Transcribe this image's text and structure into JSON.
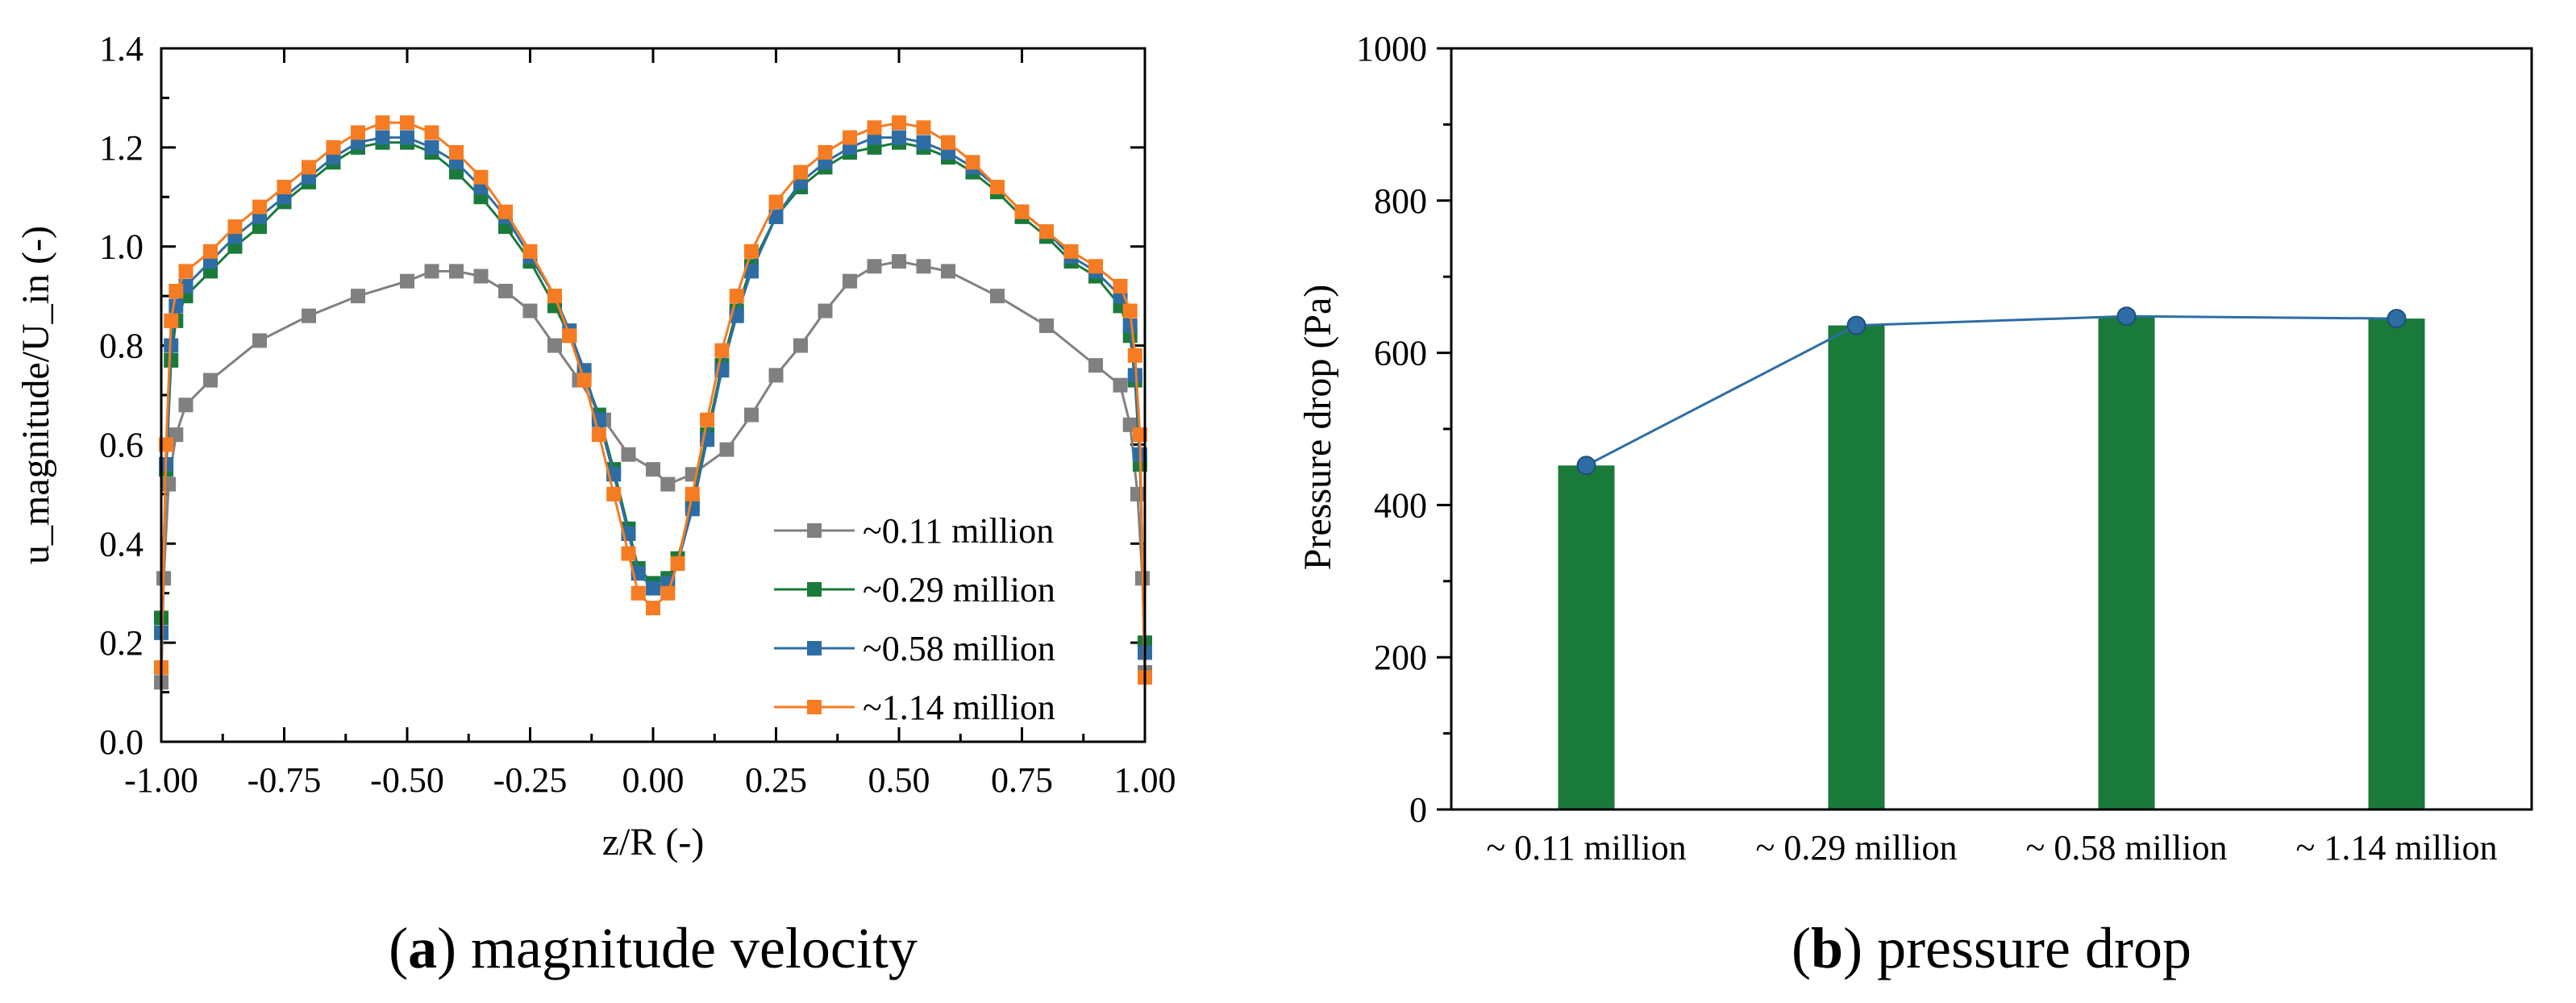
{
  "chart_data": [
    {
      "type": "line",
      "panel_letter": "a",
      "caption": "magnitude velocity",
      "xlabel": "z/R (-)",
      "ylabel": "u_magnitude/U_in (-)",
      "xlim": [
        -1.0,
        1.0
      ],
      "ylim": [
        0.0,
        1.4
      ],
      "xticks": [
        -1.0,
        -0.75,
        -0.5,
        -0.25,
        0.0,
        0.25,
        0.5,
        0.75,
        1.0
      ],
      "xtick_labels": [
        "-1.00",
        "-0.75",
        "-0.50",
        "-0.25",
        "0.00",
        "0.25",
        "0.50",
        "0.75",
        "1.00"
      ],
      "yticks": [
        0.0,
        0.2,
        0.4,
        0.6,
        0.8,
        1.0,
        1.2,
        1.4
      ],
      "ytick_labels": [
        "0.0",
        "0.2",
        "0.4",
        "0.6",
        "0.8",
        "1.0",
        "1.2",
        "1.4"
      ],
      "legend_position": "bottom-right",
      "series": [
        {
          "name": "~0.11 million",
          "color": "#808080",
          "x": [
            -1.0,
            -0.995,
            -0.985,
            -0.97,
            -0.95,
            -0.9,
            -0.8,
            -0.7,
            -0.6,
            -0.5,
            -0.45,
            -0.4,
            -0.35,
            -0.3,
            -0.25,
            -0.2,
            -0.15,
            -0.1,
            -0.05,
            0.0,
            0.03,
            0.08,
            0.15,
            0.2,
            0.25,
            0.3,
            0.35,
            0.4,
            0.45,
            0.5,
            0.55,
            0.6,
            0.7,
            0.8,
            0.9,
            0.95,
            0.97,
            0.985,
            0.995,
            1.0
          ],
          "y": [
            0.12,
            0.33,
            0.52,
            0.62,
            0.68,
            0.73,
            0.81,
            0.86,
            0.9,
            0.93,
            0.95,
            0.95,
            0.94,
            0.91,
            0.87,
            0.8,
            0.73,
            0.65,
            0.58,
            0.55,
            0.52,
            0.54,
            0.59,
            0.66,
            0.74,
            0.8,
            0.87,
            0.93,
            0.96,
            0.97,
            0.96,
            0.95,
            0.9,
            0.84,
            0.76,
            0.72,
            0.64,
            0.5,
            0.33,
            0.14
          ]
        },
        {
          "name": "~0.29 million",
          "color": "#1a7a3a",
          "x": [
            -1.0,
            -0.99,
            -0.98,
            -0.97,
            -0.95,
            -0.9,
            -0.85,
            -0.8,
            -0.75,
            -0.7,
            -0.65,
            -0.6,
            -0.55,
            -0.5,
            -0.45,
            -0.4,
            -0.35,
            -0.3,
            -0.25,
            -0.2,
            -0.17,
            -0.14,
            -0.11,
            -0.08,
            -0.05,
            -0.03,
            0.0,
            0.03,
            0.05,
            0.08,
            0.11,
            0.14,
            0.17,
            0.2,
            0.25,
            0.3,
            0.35,
            0.4,
            0.45,
            0.5,
            0.55,
            0.6,
            0.65,
            0.7,
            0.75,
            0.8,
            0.85,
            0.9,
            0.95,
            0.97,
            0.98,
            0.99,
            1.0
          ],
          "y": [
            0.25,
            0.55,
            0.77,
            0.85,
            0.9,
            0.95,
            1.0,
            1.04,
            1.09,
            1.13,
            1.17,
            1.2,
            1.21,
            1.21,
            1.19,
            1.15,
            1.1,
            1.04,
            0.97,
            0.88,
            0.82,
            0.74,
            0.66,
            0.55,
            0.43,
            0.35,
            0.32,
            0.33,
            0.37,
            0.48,
            0.62,
            0.76,
            0.87,
            0.96,
            1.06,
            1.12,
            1.16,
            1.19,
            1.2,
            1.21,
            1.2,
            1.18,
            1.15,
            1.11,
            1.06,
            1.02,
            0.97,
            0.94,
            0.88,
            0.82,
            0.73,
            0.56,
            0.2
          ]
        },
        {
          "name": "~0.58 million",
          "color": "#2e6da4",
          "x": [
            -1.0,
            -0.99,
            -0.98,
            -0.97,
            -0.95,
            -0.9,
            -0.85,
            -0.8,
            -0.75,
            -0.7,
            -0.65,
            -0.6,
            -0.55,
            -0.5,
            -0.45,
            -0.4,
            -0.35,
            -0.3,
            -0.25,
            -0.2,
            -0.17,
            -0.14,
            -0.11,
            -0.08,
            -0.05,
            -0.03,
            0.0,
            0.03,
            0.05,
            0.08,
            0.11,
            0.14,
            0.17,
            0.2,
            0.25,
            0.3,
            0.35,
            0.4,
            0.45,
            0.5,
            0.55,
            0.6,
            0.65,
            0.7,
            0.75,
            0.8,
            0.85,
            0.9,
            0.95,
            0.97,
            0.98,
            0.99,
            1.0
          ],
          "y": [
            0.22,
            0.56,
            0.8,
            0.88,
            0.92,
            0.97,
            1.02,
            1.06,
            1.1,
            1.14,
            1.18,
            1.21,
            1.22,
            1.22,
            1.2,
            1.17,
            1.12,
            1.06,
            0.98,
            0.9,
            0.83,
            0.75,
            0.65,
            0.54,
            0.42,
            0.34,
            0.31,
            0.32,
            0.36,
            0.47,
            0.61,
            0.75,
            0.86,
            0.95,
            1.06,
            1.13,
            1.17,
            1.2,
            1.22,
            1.22,
            1.21,
            1.19,
            1.16,
            1.12,
            1.07,
            1.03,
            0.98,
            0.95,
            0.9,
            0.84,
            0.74,
            0.58,
            0.18
          ]
        },
        {
          "name": "~1.14 million",
          "color": "#f57c22",
          "x": [
            -1.0,
            -0.99,
            -0.98,
            -0.97,
            -0.95,
            -0.9,
            -0.85,
            -0.8,
            -0.75,
            -0.7,
            -0.65,
            -0.6,
            -0.55,
            -0.5,
            -0.45,
            -0.4,
            -0.35,
            -0.3,
            -0.25,
            -0.2,
            -0.17,
            -0.14,
            -0.11,
            -0.08,
            -0.05,
            -0.03,
            0.0,
            0.03,
            0.05,
            0.08,
            0.11,
            0.14,
            0.17,
            0.2,
            0.25,
            0.3,
            0.35,
            0.4,
            0.45,
            0.5,
            0.55,
            0.6,
            0.65,
            0.7,
            0.75,
            0.8,
            0.85,
            0.9,
            0.95,
            0.97,
            0.98,
            0.99,
            1.0
          ],
          "y": [
            0.15,
            0.6,
            0.85,
            0.91,
            0.95,
            0.99,
            1.04,
            1.08,
            1.12,
            1.16,
            1.2,
            1.23,
            1.25,
            1.25,
            1.23,
            1.19,
            1.14,
            1.07,
            0.99,
            0.9,
            0.82,
            0.73,
            0.62,
            0.5,
            0.38,
            0.3,
            0.27,
            0.3,
            0.36,
            0.5,
            0.65,
            0.79,
            0.9,
            0.99,
            1.09,
            1.15,
            1.19,
            1.22,
            1.24,
            1.25,
            1.24,
            1.21,
            1.17,
            1.12,
            1.07,
            1.03,
            0.99,
            0.96,
            0.92,
            0.87,
            0.78,
            0.62,
            0.13
          ]
        }
      ]
    },
    {
      "type": "bar",
      "panel_letter": "b",
      "caption": "pressure drop",
      "xlabel": "",
      "ylabel": "Pressure drop (Pa)",
      "ylim": [
        0,
        1000
      ],
      "yticks": [
        0,
        200,
        400,
        600,
        800,
        1000
      ],
      "ytick_labels": [
        "0",
        "200",
        "400",
        "600",
        "800",
        "1000"
      ],
      "categories": [
        "~ 0.11 million",
        "~ 0.29 million",
        "~ 0.58 million",
        "~ 1.14 million"
      ],
      "values": [
        452,
        636,
        648,
        645
      ],
      "bar_color": "#1a7a3a",
      "line_color": "#2e6da4",
      "marker_color": "#2e6da4"
    }
  ]
}
